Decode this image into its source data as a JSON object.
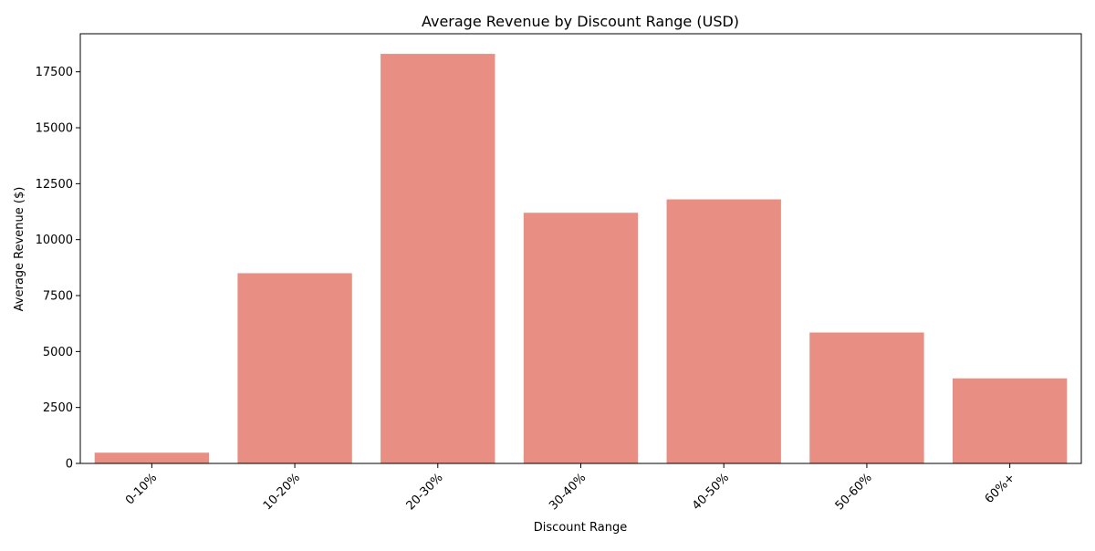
{
  "chart_data": {
    "type": "bar",
    "title": "Average Revenue by Discount Range (USD)",
    "xlabel": "Discount Range",
    "ylabel": "Average Revenue ($)",
    "categories": [
      "0-10%",
      "10-20%",
      "20-30%",
      "30-40%",
      "40-50%",
      "50-60%",
      "60%+"
    ],
    "values": [
      480,
      8500,
      18300,
      11200,
      11800,
      5850,
      3800
    ],
    "ylim": [
      0,
      19200
    ],
    "yticks": [
      0,
      2500,
      5000,
      7500,
      10000,
      12500,
      15000,
      17500
    ],
    "bar_color": "#e88e82",
    "grid": false,
    "legend": "none",
    "xtick_rotation": 45
  }
}
